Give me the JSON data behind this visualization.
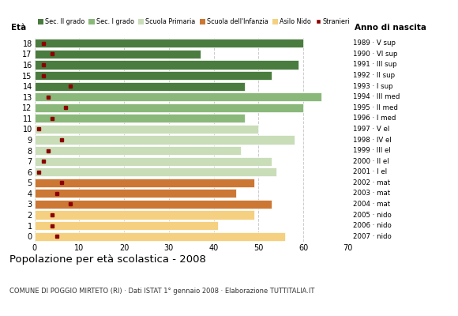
{
  "ages": [
    18,
    17,
    16,
    15,
    14,
    13,
    12,
    11,
    10,
    9,
    8,
    7,
    6,
    5,
    4,
    3,
    2,
    1,
    0
  ],
  "years": [
    "1989 · V sup",
    "1990 · VI sup",
    "1991 · III sup",
    "1992 · II sup",
    "1993 · I sup",
    "1994 · III med",
    "1995 · II med",
    "1996 · I med",
    "1997 · V el",
    "1998 · IV el",
    "1999 · III el",
    "2000 · II el",
    "2001 · I el",
    "2002 · mat",
    "2003 · mat",
    "2004 · mat",
    "2005 · nido",
    "2006 · nido",
    "2007 · nido"
  ],
  "values": [
    60,
    37,
    59,
    53,
    47,
    64,
    60,
    47,
    50,
    58,
    46,
    53,
    54,
    49,
    45,
    53,
    49,
    41,
    56
  ],
  "stranieri": [
    2,
    4,
    2,
    2,
    8,
    3,
    7,
    4,
    1,
    6,
    3,
    2,
    1,
    6,
    5,
    8,
    4,
    4,
    5
  ],
  "categories": [
    "Sec. II grado",
    "Sec. II grado",
    "Sec. II grado",
    "Sec. II grado",
    "Sec. II grado",
    "Sec. I grado",
    "Sec. I grado",
    "Sec. I grado",
    "Scuola Primaria",
    "Scuola Primaria",
    "Scuola Primaria",
    "Scuola Primaria",
    "Scuola Primaria",
    "Scuola dell'Infanzia",
    "Scuola dell'Infanzia",
    "Scuola dell'Infanzia",
    "Asilo Nido",
    "Asilo Nido",
    "Asilo Nido"
  ],
  "colors": {
    "Sec. II grado": "#4a7c3f",
    "Sec. I grado": "#8ab87a",
    "Scuola Primaria": "#c8ddb8",
    "Scuola dell'Infanzia": "#cc7733",
    "Asilo Nido": "#f5d080"
  },
  "stranieri_color": "#8b0000",
  "title": "Popolazione per età scolastica - 2008",
  "subtitle": "COMUNE DI POGGIO MIRTETO (RI) · Dati ISTAT 1° gennaio 2008 · Elaborazione TUTTITALIA.IT",
  "xlabel_eta": "Età",
  "xlabel_anno": "Anno di nascita",
  "xlim": [
    0,
    70
  ],
  "xticks": [
    0,
    10,
    20,
    30,
    40,
    50,
    60,
    70
  ],
  "bg_color": "#ffffff",
  "grid_color": "#cccccc",
  "bar_height": 0.82
}
